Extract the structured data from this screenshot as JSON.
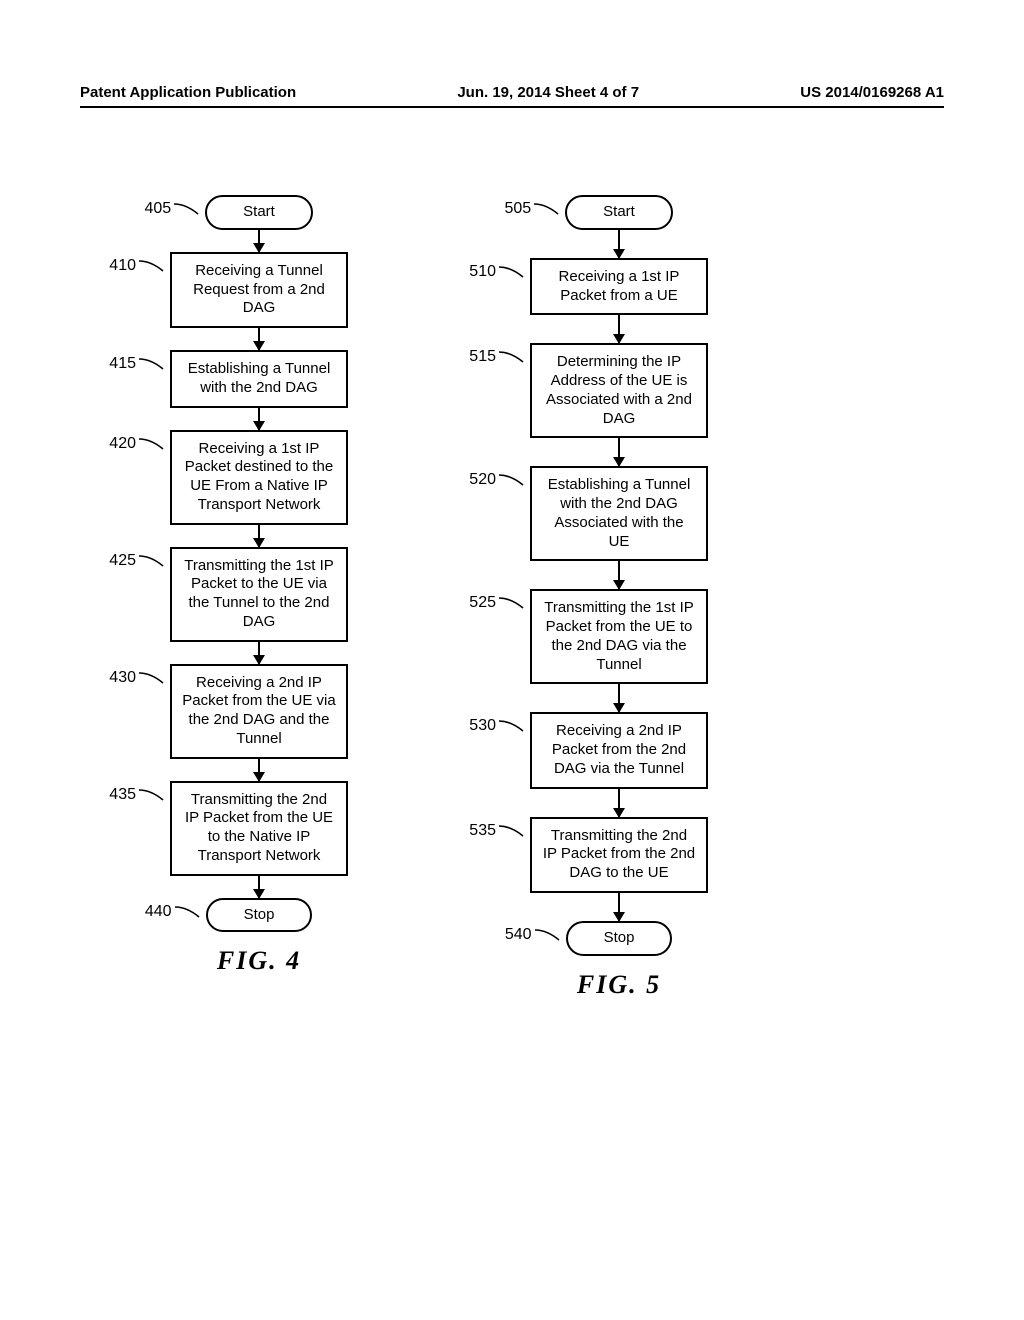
{
  "header": {
    "left": "Patent Application Publication",
    "center": "Jun. 19, 2014  Sheet 4 of 7",
    "right": "US 2014/0169268 A1"
  },
  "figure4": {
    "label": "FIG.  4",
    "arrow_height": 22,
    "steps": [
      {
        "ref": "405",
        "type": "terminal",
        "text": "Start"
      },
      {
        "ref": "410",
        "type": "process",
        "text": "Receiving a Tunnel Request from a 2nd DAG"
      },
      {
        "ref": "415",
        "type": "process",
        "text": "Establishing a Tunnel with the 2nd DAG"
      },
      {
        "ref": "420",
        "type": "process",
        "text": "Receiving a 1st IP Packet destined to the UE From a Native IP Transport Network"
      },
      {
        "ref": "425",
        "type": "process",
        "text": "Transmitting the 1st IP Packet to the UE via the Tunnel to the 2nd DAG"
      },
      {
        "ref": "430",
        "type": "process",
        "text": "Receiving a 2nd IP Packet from the UE via the 2nd DAG and the Tunnel"
      },
      {
        "ref": "435",
        "type": "process",
        "text": "Transmitting the 2nd IP Packet from the UE to the Native IP Transport Network"
      },
      {
        "ref": "440",
        "type": "terminal",
        "text": "Stop"
      }
    ]
  },
  "figure5": {
    "label": "FIG.  5",
    "arrow_height": 28,
    "steps": [
      {
        "ref": "505",
        "type": "terminal",
        "text": "Start"
      },
      {
        "ref": "510",
        "type": "process",
        "text": "Receiving a 1st IP Packet from a UE"
      },
      {
        "ref": "515",
        "type": "process",
        "text": "Determining the IP Address of the UE is Associated with a 2nd DAG"
      },
      {
        "ref": "520",
        "type": "process",
        "text": "Establishing a Tunnel with the 2nd DAG Associated with the UE"
      },
      {
        "ref": "525",
        "type": "process",
        "text": "Transmitting the 1st IP Packet from the UE to the 2nd DAG via the Tunnel"
      },
      {
        "ref": "530",
        "type": "process",
        "text": "Receiving a 2nd IP Packet from the 2nd DAG via the Tunnel"
      },
      {
        "ref": "535",
        "type": "process",
        "text": "Transmitting the 2nd IP Packet from the 2nd DAG to the UE"
      },
      {
        "ref": "540",
        "type": "terminal",
        "text": "Stop"
      }
    ]
  },
  "colors": {
    "line": "#000000",
    "background": "#ffffff",
    "text": "#000000"
  }
}
